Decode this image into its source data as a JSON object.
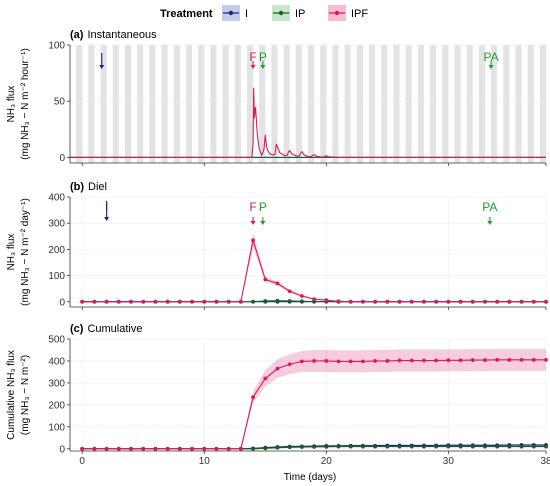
{
  "legend": {
    "title": "Treatment",
    "items": [
      {
        "label": "I",
        "color": "#1a237e",
        "fill": "#c5cae9"
      },
      {
        "label": "IP",
        "color": "#1b5e20",
        "fill": "#c8e6c9"
      },
      {
        "label": "IPF",
        "color": "#d81b60",
        "fill": "#f8bbd0"
      }
    ]
  },
  "xlabel": "Time (days)",
  "chart_data": [
    {
      "type": "line",
      "title_tag": "(a)",
      "title": "Instantaneous",
      "ylabel_lines": [
        "NH₃ flux",
        "(mg NH₃ − N m⁻² hour⁻¹)"
      ],
      "xlim": [
        -1,
        38
      ],
      "ylim": [
        -5,
        100
      ],
      "yticks": [
        0,
        50,
        100
      ],
      "xticks": [
        0,
        10,
        20,
        30,
        38
      ],
      "night_bands": true,
      "markers": [
        {
          "label": "I",
          "x": 1.6,
          "color": "#1a237e"
        },
        {
          "label": "F",
          "x": 14.0,
          "color": "#d81b60"
        },
        {
          "label": "P",
          "x": 14.8,
          "color": "#1b9e2f"
        },
        {
          "label": "PA",
          "x": 33.5,
          "color": "#1b9e2f"
        }
      ],
      "series": [
        {
          "name": "IPF",
          "color": "#d81b60",
          "x": [
            -1,
            13.9,
            14.0,
            14.05,
            14.1,
            14.2,
            14.35,
            14.5,
            14.7,
            14.8,
            14.9,
            15.0,
            15.1,
            15.2,
            15.4,
            15.7,
            15.8,
            15.9,
            16.0,
            16.2,
            16.6,
            16.8,
            16.9,
            17.0,
            17.2,
            17.6,
            17.8,
            17.9,
            18.0,
            18.2,
            18.6,
            18.8,
            18.9,
            19.0,
            19.2,
            19.6,
            19.8,
            19.9,
            20.0,
            20.2,
            20.6,
            20.8,
            21.0,
            38
          ],
          "y": [
            0,
            0,
            12,
            62,
            35,
            45,
            20,
            8,
            2,
            4,
            8,
            20,
            10,
            6,
            3,
            2,
            3,
            12,
            9,
            4,
            1.5,
            2,
            5,
            6,
            3,
            1,
            1.5,
            4,
            5,
            2,
            0.5,
            1,
            2,
            2.5,
            1,
            0.3,
            0.5,
            1,
            1.5,
            0.5,
            0.2,
            0.3,
            0,
            0
          ]
        },
        {
          "name": "IP",
          "color": "#1b5e20",
          "x": [
            -1,
            38
          ],
          "y": [
            0,
            0
          ]
        },
        {
          "name": "I",
          "color": "#1a237e",
          "x": [
            -1,
            38
          ],
          "y": [
            0,
            0
          ]
        }
      ]
    },
    {
      "type": "line",
      "title_tag": "(b)",
      "title": "Diel",
      "ylabel_lines": [
        "NH₃ flux",
        "(mg NH₃ − N m⁻² day⁻¹)"
      ],
      "xlim": [
        -1,
        38
      ],
      "ylim": [
        -20,
        400
      ],
      "yticks": [
        0,
        100,
        200,
        300,
        400
      ],
      "xticks": [
        0,
        10,
        20,
        30,
        38
      ],
      "markers": [
        {
          "label": "I",
          "x": 2.0,
          "color": "#1a237e"
        },
        {
          "label": "F",
          "x": 14.0,
          "color": "#d81b60"
        },
        {
          "label": "P",
          "x": 14.8,
          "color": "#1b9e2f"
        },
        {
          "label": "PA",
          "x": 33.4,
          "color": "#1b9e2f"
        }
      ],
      "series": [
        {
          "name": "IPF",
          "color": "#d81b60",
          "x": [
            0,
            1,
            2,
            3,
            4,
            5,
            6,
            7,
            8,
            9,
            10,
            11,
            12,
            13,
            14,
            15,
            16,
            17,
            18,
            19,
            20,
            21,
            22,
            23,
            24,
            25,
            26,
            27,
            28,
            29,
            30,
            31,
            32,
            33,
            34,
            35,
            36,
            37,
            38
          ],
          "y": [
            0,
            0,
            0,
            0,
            0,
            0,
            0,
            0,
            0,
            0,
            0,
            0,
            0,
            0,
            235,
            85,
            70,
            40,
            22,
            10,
            6,
            2,
            0,
            0,
            0,
            0,
            0,
            0,
            0,
            0,
            0,
            0,
            0,
            0,
            0,
            0,
            0,
            0,
            0
          ],
          "band": [
            0,
            0,
            0,
            0,
            0,
            0,
            0,
            0,
            0,
            0,
            0,
            0,
            0,
            0,
            28,
            10,
            8,
            6,
            4,
            3,
            2,
            1,
            0,
            0,
            0,
            0,
            0,
            0,
            0,
            0,
            0,
            0,
            0,
            0,
            0,
            0,
            0,
            0,
            0
          ]
        },
        {
          "name": "IP",
          "color": "#1b5e20",
          "x": [
            0,
            1,
            2,
            3,
            4,
            5,
            6,
            7,
            8,
            9,
            10,
            11,
            12,
            13,
            14,
            15,
            16,
            17,
            18,
            19,
            20,
            21,
            22,
            23,
            24,
            25,
            26,
            27,
            28,
            29,
            30,
            31,
            32,
            33,
            34,
            35,
            36,
            37,
            38
          ],
          "y": [
            0,
            0,
            0,
            0,
            0,
            0,
            0,
            0,
            0,
            0,
            0,
            0,
            0,
            0,
            0,
            3,
            4,
            3,
            2,
            1,
            1,
            0,
            0,
            0,
            0,
            0,
            0,
            0,
            0,
            0,
            0,
            0,
            0,
            0,
            0,
            0,
            0,
            0,
            0
          ]
        },
        {
          "name": "I",
          "color": "#1a237e",
          "x": [
            0,
            1,
            2,
            3,
            4,
            5,
            6,
            7,
            8,
            9,
            10,
            11,
            12,
            13,
            14,
            15,
            16,
            17,
            18,
            19,
            20,
            21,
            22,
            23,
            24,
            25,
            26,
            27,
            28,
            29,
            30,
            31,
            32,
            33,
            34,
            35,
            36,
            37,
            38
          ],
          "y": [
            0,
            0,
            0,
            0,
            0,
            0,
            0,
            0,
            0,
            0,
            0,
            0,
            0,
            0,
            0,
            0,
            0,
            0,
            0,
            0,
            0,
            0,
            0,
            0,
            0,
            0,
            0,
            0,
            0,
            0,
            0,
            0,
            0,
            0,
            0,
            0,
            0,
            0,
            0
          ]
        }
      ]
    },
    {
      "type": "line",
      "title_tag": "(c)",
      "title": "Cumulative",
      "ylabel_lines": [
        "Cumulative NH₃ flux",
        "(mg NH₃ − N m⁻²)"
      ],
      "xlim": [
        -1,
        38
      ],
      "ylim": [
        -10,
        500
      ],
      "yticks": [
        0,
        100,
        200,
        300,
        400,
        500
      ],
      "xticks": [
        0,
        10,
        20,
        30,
        38
      ],
      "series": [
        {
          "name": "IPF",
          "color": "#d81b60",
          "x": [
            0,
            1,
            2,
            3,
            4,
            5,
            6,
            7,
            8,
            9,
            10,
            11,
            12,
            13,
            14,
            15,
            16,
            17,
            18,
            19,
            20,
            21,
            22,
            23,
            24,
            25,
            26,
            27,
            28,
            29,
            30,
            31,
            32,
            33,
            34,
            35,
            36,
            37,
            38
          ],
          "y": [
            0,
            0,
            0,
            0,
            0,
            0,
            0,
            0,
            0,
            0,
            0,
            0,
            0,
            0,
            235,
            320,
            365,
            385,
            398,
            400,
            400,
            398,
            398,
            398,
            400,
            400,
            402,
            402,
            402,
            402,
            403,
            403,
            404,
            404,
            405,
            405,
            405,
            405,
            405
          ],
          "band": [
            0,
            0,
            0,
            0,
            0,
            0,
            0,
            0,
            0,
            0,
            0,
            0,
            0,
            0,
            25,
            38,
            42,
            45,
            48,
            50,
            50,
            50,
            50,
            50,
            50,
            50,
            50,
            50,
            50,
            50,
            50,
            50,
            50,
            50,
            50,
            50,
            50,
            50,
            50
          ]
        },
        {
          "name": "IP",
          "color": "#1b5e20",
          "x": [
            0,
            1,
            2,
            3,
            4,
            5,
            6,
            7,
            8,
            9,
            10,
            11,
            12,
            13,
            14,
            15,
            16,
            17,
            18,
            19,
            20,
            21,
            22,
            23,
            24,
            25,
            26,
            27,
            28,
            29,
            30,
            31,
            32,
            33,
            34,
            35,
            36,
            37,
            38
          ],
          "y": [
            0,
            0,
            0,
            0,
            0,
            0,
            0,
            0,
            0,
            0,
            0,
            0,
            0,
            0,
            0,
            2,
            5,
            7,
            8,
            9,
            9,
            10,
            10,
            10,
            10,
            10,
            10,
            10,
            10,
            10,
            10,
            10,
            10,
            10,
            10,
            10,
            10,
            10,
            10
          ]
        },
        {
          "name": "I",
          "color": "#1a237e",
          "x": [
            0,
            1,
            2,
            3,
            4,
            5,
            6,
            7,
            8,
            9,
            10,
            11,
            12,
            13,
            14,
            15,
            16,
            17,
            18,
            19,
            20,
            21,
            22,
            23,
            24,
            25,
            26,
            27,
            28,
            29,
            30,
            31,
            32,
            33,
            34,
            35,
            36,
            37,
            38
          ],
          "y": [
            0,
            0,
            0,
            0,
            0,
            0,
            0,
            0,
            0,
            0,
            0,
            0,
            0,
            0,
            2,
            5,
            8,
            10,
            11,
            12,
            13,
            13,
            14,
            14,
            14,
            15,
            15,
            15,
            15,
            15,
            16,
            16,
            16,
            16,
            16,
            17,
            17,
            17,
            17
          ],
          "band": [
            0,
            0,
            0,
            0,
            0,
            0,
            0,
            0,
            0,
            0,
            0,
            0,
            0,
            0,
            3,
            4,
            5,
            5,
            5,
            5,
            5,
            5,
            5,
            5,
            5,
            5,
            5,
            5,
            5,
            5,
            5,
            5,
            5,
            5,
            5,
            5,
            5,
            5,
            5
          ]
        }
      ]
    }
  ]
}
